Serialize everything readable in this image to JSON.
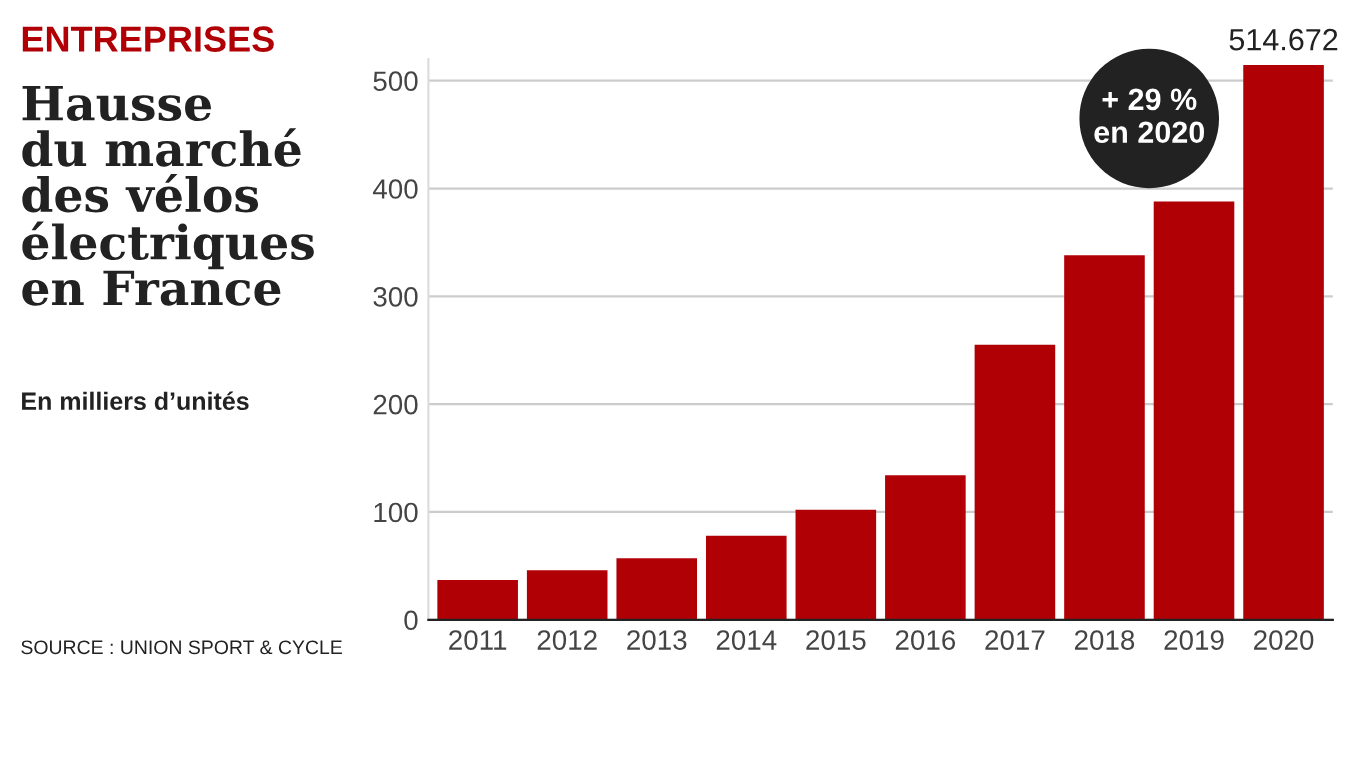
{
  "chart_data": {
    "type": "bar",
    "title": "Hausse\ndu marché\ndes vélos\nélectriques\nen France",
    "subtitle": "En milliers d’unités",
    "annotations": [
      "ENTREPRISES",
      "SOURCE : UNION SPORT & CYCLE",
      "+ 29 %\nen 2020"
    ],
    "categories": [
      "2011",
      "2012",
      "2013",
      "2014",
      "2015",
      "2016",
      "2017",
      "2018",
      "2019",
      "2020"
    ],
    "values": [
      37,
      46,
      57,
      78,
      102,
      134,
      255,
      338,
      388,
      514.672
    ],
    "value_labels": [
      null,
      null,
      null,
      null,
      null,
      null,
      null,
      null,
      null,
      "514.672"
    ],
    "color": "#b00006",
    "ylim": [
      0,
      520
    ],
    "yticks": [
      0,
      100,
      200,
      300,
      400,
      500
    ],
    "grid": "y",
    "legend": false
  }
}
